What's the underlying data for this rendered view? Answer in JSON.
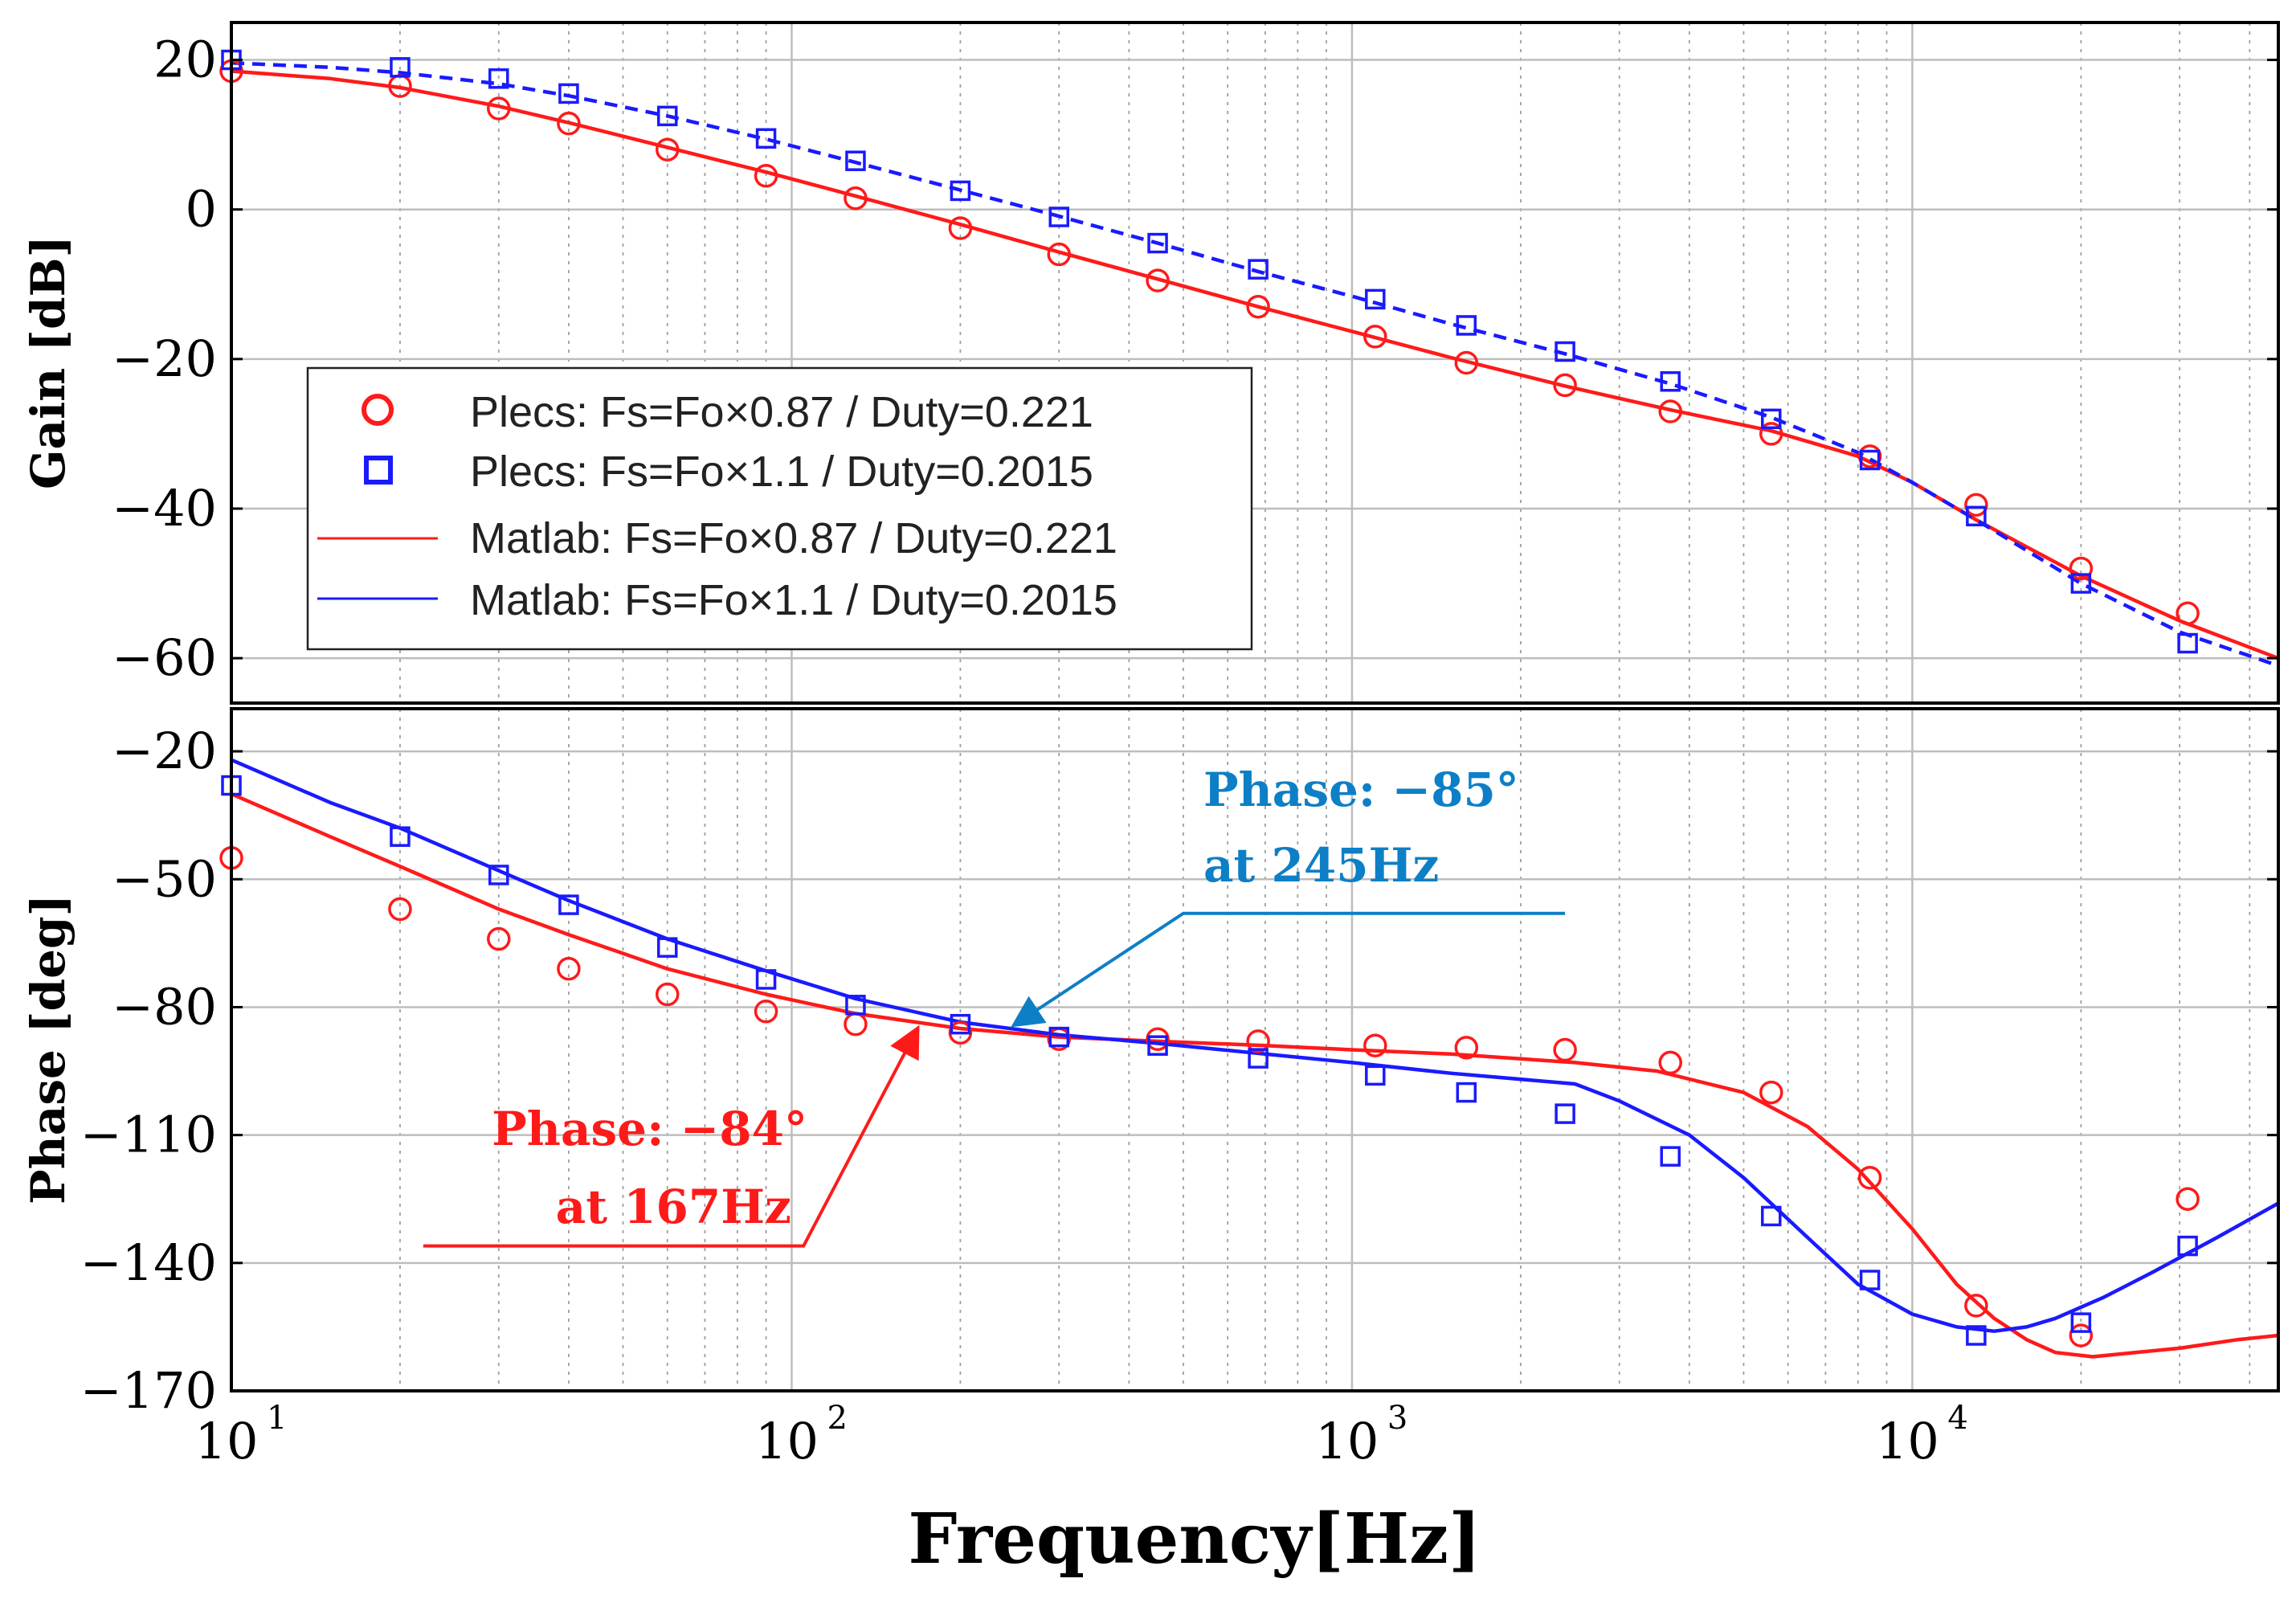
{
  "chart_data": [
    {
      "type": "line",
      "panel": "gain",
      "ylabel": "Gain [dB]",
      "xscale": "log",
      "xlim": [
        10,
        45000
      ],
      "ylim": [
        -66,
        25
      ],
      "yticks": [
        20,
        0,
        -20,
        -40,
        -60
      ],
      "ytick_labels": [
        "20",
        "0",
        "−20",
        "−40",
        "−60"
      ],
      "series": [
        {
          "name": "Plecs: Fs=Fo×0.87 / Duty=0.221",
          "style": "markers-circle",
          "color": "#ff1a1a",
          "x": [
            10,
            20,
            30,
            40,
            60,
            90,
            130,
            200,
            300,
            450,
            680,
            1100,
            1600,
            2400,
            3700,
            5600,
            8400,
            13000,
            20000,
            31000
          ],
          "y": [
            18.5,
            16.5,
            13.5,
            11.5,
            8,
            4.5,
            1.5,
            -2.5,
            -6,
            -9.5,
            -13,
            -17,
            -20.5,
            -23.5,
            -27,
            -30,
            -33,
            -39.5,
            -48,
            -54
          ]
        },
        {
          "name": "Plecs: Fs=Fo×1.1 / Duty=0.2015",
          "style": "markers-square",
          "color": "#1a1aff",
          "x": [
            10,
            20,
            30,
            40,
            60,
            90,
            130,
            200,
            300,
            450,
            680,
            1100,
            1600,
            2400,
            3700,
            5600,
            8400,
            13000,
            20000,
            31000
          ],
          "y": [
            20,
            19,
            17.5,
            15.5,
            12.5,
            9.5,
            6.5,
            2.5,
            -1,
            -4.5,
            -8,
            -12,
            -15.5,
            -19,
            -23,
            -28,
            -33.5,
            -41,
            -50,
            -58
          ]
        },
        {
          "name": "Matlab: Fs=Fo×0.87 / Duty=0.221",
          "style": "solid",
          "color": "#ff1a1a",
          "x": [
            10,
            15,
            20,
            30,
            40,
            60,
            90,
            130,
            200,
            300,
            450,
            680,
            1000,
            1500,
            2400,
            3700,
            5600,
            8000,
            10000,
            13000,
            20000,
            30000,
            45000
          ],
          "y": [
            18.5,
            17.5,
            16.3,
            13.8,
            11.6,
            8.3,
            5.0,
            1.8,
            -2.0,
            -5.7,
            -9.3,
            -13.0,
            -16.3,
            -19.8,
            -23.6,
            -26.8,
            -29.6,
            -33.0,
            -36.5,
            -41.5,
            -49.0,
            -55.0,
            -60.0
          ]
        },
        {
          "name": "Matlab: Fs=Fo×1.1 / Duty=0.2015",
          "style": "dashed",
          "color": "#1a1aff",
          "x": [
            10,
            15,
            20,
            30,
            40,
            60,
            90,
            130,
            200,
            300,
            450,
            680,
            1000,
            1500,
            2400,
            3700,
            5600,
            8000,
            10000,
            13000,
            20000,
            30000,
            45000
          ],
          "y": [
            19.6,
            19.0,
            18.3,
            16.8,
            15.2,
            12.5,
            9.4,
            6.3,
            2.6,
            -0.9,
            -4.5,
            -8.3,
            -11.6,
            -15.3,
            -19.3,
            -23.3,
            -27.8,
            -32.5,
            -36.5,
            -41.5,
            -50.0,
            -56.5,
            -61.0
          ]
        }
      ]
    },
    {
      "type": "line",
      "panel": "phase",
      "ylabel": "Phase [deg]",
      "xlabel": "Frequency[Hz]",
      "xscale": "log",
      "xlim": [
        10,
        45000
      ],
      "ylim": [
        -170,
        -10
      ],
      "yticks": [
        -20,
        -50,
        -80,
        -110,
        -140,
        -170
      ],
      "ytick_labels": [
        "−20",
        "−50",
        "−80",
        "−110",
        "−140",
        "−170"
      ],
      "xticks": [
        10,
        100,
        1000,
        10000
      ],
      "xtick_bases": [
        "10",
        "10",
        "10",
        "10"
      ],
      "xtick_exponents": [
        "1",
        "2",
        "3",
        "4"
      ],
      "series": [
        {
          "name": "Plecs: Fs=Fo×0.87 / Duty=0.221",
          "style": "markers-circle",
          "color": "#ff1a1a",
          "x": [
            10,
            20,
            30,
            40,
            60,
            90,
            130,
            200,
            300,
            450,
            680,
            1100,
            1600,
            2400,
            3700,
            5600,
            8400,
            13000,
            20000,
            31000
          ],
          "y": [
            -45,
            -57,
            -64,
            -71,
            -77,
            -81,
            -84,
            -86,
            -87.5,
            -87.5,
            -88,
            -89,
            -89.5,
            -90,
            -93,
            -100,
            -120,
            -150,
            -157,
            -125
          ]
        },
        {
          "name": "Plecs: Fs=Fo×1.1 / Duty=0.2015",
          "style": "markers-square",
          "color": "#1a1aff",
          "x": [
            10,
            20,
            30,
            40,
            60,
            90,
            130,
            200,
            300,
            450,
            680,
            1100,
            1600,
            2400,
            3700,
            5600,
            8400,
            13000,
            20000,
            31000
          ],
          "y": [
            -28,
            -40,
            -49,
            -56,
            -66,
            -73.5,
            -79.5,
            -84,
            -87,
            -89,
            -92,
            -96,
            -100,
            -105,
            -115,
            -129,
            -144,
            -157,
            -154,
            -136
          ]
        },
        {
          "name": "Matlab: Fs=Fo×0.87 / Duty=0.221",
          "style": "solid",
          "color": "#ff1a1a",
          "x": [
            10,
            15,
            20,
            30,
            40,
            60,
            90,
            130,
            200,
            300,
            450,
            700,
            1000,
            1500,
            2500,
            3500,
            5000,
            6500,
            8000,
            10000,
            12000,
            14000,
            16000,
            18000,
            21000,
            25000,
            30000,
            38000,
            45000
          ],
          "y": [
            -30,
            -40,
            -47,
            -57,
            -63,
            -71,
            -77,
            -81.5,
            -85,
            -87,
            -88,
            -89,
            -90,
            -91,
            -93,
            -95,
            -100,
            -108,
            -118,
            -132,
            -145,
            -153,
            -158,
            -161,
            -162,
            -161,
            -160,
            -158,
            -157
          ]
        },
        {
          "name": "Matlab: Fs=Fo×1.1 / Duty=0.2015",
          "style": "solid",
          "color": "#1a1aff",
          "x": [
            10,
            15,
            20,
            30,
            40,
            60,
            90,
            130,
            200,
            300,
            450,
            700,
            1000,
            1500,
            2500,
            3000,
            4000,
            5000,
            6500,
            8000,
            10000,
            12000,
            14000,
            16000,
            18000,
            22000,
            27000,
            35000,
            45000
          ],
          "y": [
            -22,
            -32,
            -38,
            -48,
            -55,
            -64,
            -71.5,
            -78,
            -83.5,
            -86.5,
            -88.5,
            -91,
            -93,
            -95.5,
            -98,
            -102,
            -110,
            -120,
            -134,
            -145,
            -152,
            -155,
            -156,
            -155,
            -153,
            -148,
            -142,
            -134,
            -126
          ]
        }
      ]
    }
  ],
  "legend": [
    {
      "label": "Plecs: Fs=Fo×0.87 / Duty=0.221",
      "marker": "circle",
      "color": "#ff1a1a"
    },
    {
      "label": "Plecs: Fs=Fo×1.1 / Duty=0.2015",
      "marker": "square",
      "color": "#1a1aff"
    },
    {
      "label": "Matlab: Fs=Fo×0.87 / Duty=0.221",
      "marker": "line",
      "color": "#ff1a1a"
    },
    {
      "label": "Matlab: Fs=Fo×1.1 / Duty=0.2015",
      "marker": "line",
      "color": "#1a1aff"
    }
  ],
  "annotations": [
    {
      "line1": "Phase: −85°",
      "line2": "at 245Hz",
      "color": "#0d7fc6",
      "target_x": 245,
      "target_y": -85,
      "leader_y": -58,
      "leader_x": [
        500,
        2400
      ],
      "text_x": 500
    },
    {
      "line1": "Phase: −84°",
      "line2": "at 167Hz",
      "color": "#ff1a1a",
      "target_x": 167,
      "target_y": -84,
      "leader_y": -136,
      "leader_x": [
        22,
        105
      ],
      "text_x": 105
    }
  ]
}
